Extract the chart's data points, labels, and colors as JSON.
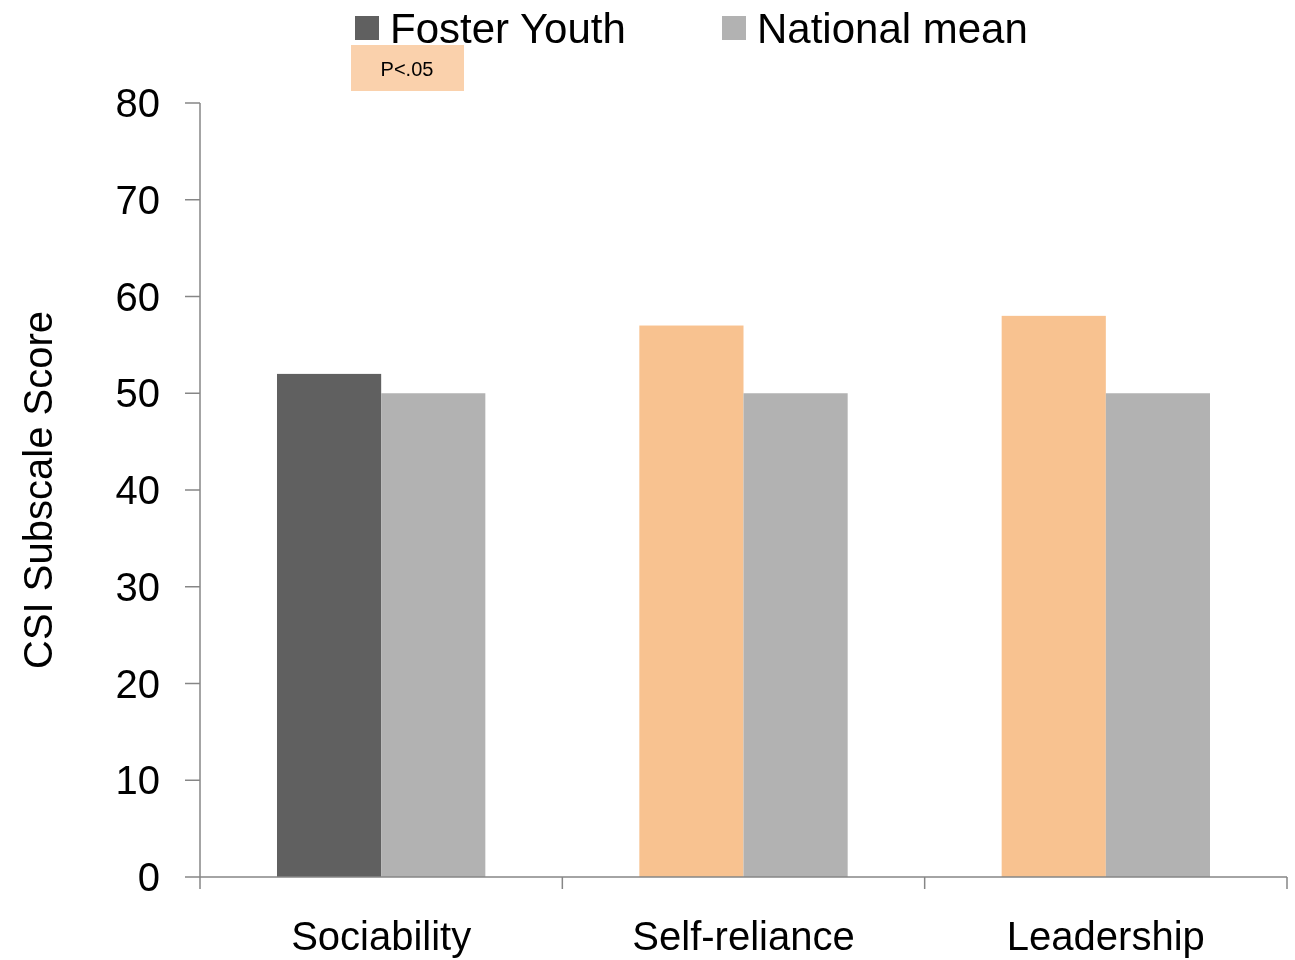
{
  "chart_data": {
    "type": "bar",
    "ylabel": "CSI Subscale Score",
    "categories": [
      "Sociability",
      "Self-reliance",
      "Leadership"
    ],
    "series": [
      {
        "name": "Foster Youth",
        "color": "#606060",
        "colors": [
          "#606060",
          "#f8c290",
          "#f8c290"
        ],
        "values": [
          52,
          57,
          58
        ]
      },
      {
        "name": "National mean",
        "color": "#b2b2b2",
        "values": [
          50,
          50,
          50
        ]
      }
    ],
    "ylim": [
      0,
      80
    ],
    "yticks": [
      0,
      10,
      20,
      30,
      40,
      50,
      60,
      70,
      80
    ],
    "grid": false,
    "legend": "top",
    "annotations": [
      "P<.05"
    ]
  }
}
